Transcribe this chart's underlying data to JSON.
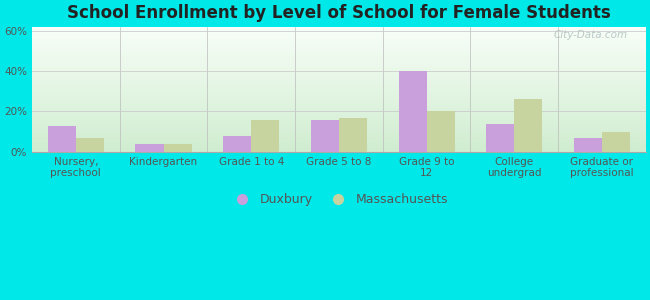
{
  "title": "School Enrollment by Level of School for Female Students",
  "categories": [
    "Nursery,\npreschool",
    "Kindergarten",
    "Grade 1 to 4",
    "Grade 5 to 8",
    "Grade 9 to\n12",
    "College\nundergrad",
    "Graduate or\nprofessional"
  ],
  "duxbury": [
    13,
    4,
    8,
    16,
    40,
    14,
    7
  ],
  "massachusetts": [
    7,
    4,
    16,
    17,
    20,
    26,
    10
  ],
  "duxbury_color": "#c9a0dc",
  "massachusetts_color": "#c8d4a0",
  "bar_width": 0.32,
  "ylim": [
    0,
    62
  ],
  "yticks": [
    0,
    20,
    40,
    60
  ],
  "ytick_labels": [
    "0%",
    "20%",
    "40%",
    "60%"
  ],
  "legend_duxbury": "Duxbury",
  "legend_massachusetts": "Massachusetts",
  "bg_outer": "#00e8e8",
  "bg_plot_top": "#eaf5e8",
  "bg_plot_bottom": "#f8fdf5",
  "title_fontsize": 12,
  "tick_fontsize": 7.5,
  "legend_fontsize": 9,
  "watermark": "City-Data.com",
  "grid_color": "#cccccc",
  "separator_color": "#bbbbbb"
}
